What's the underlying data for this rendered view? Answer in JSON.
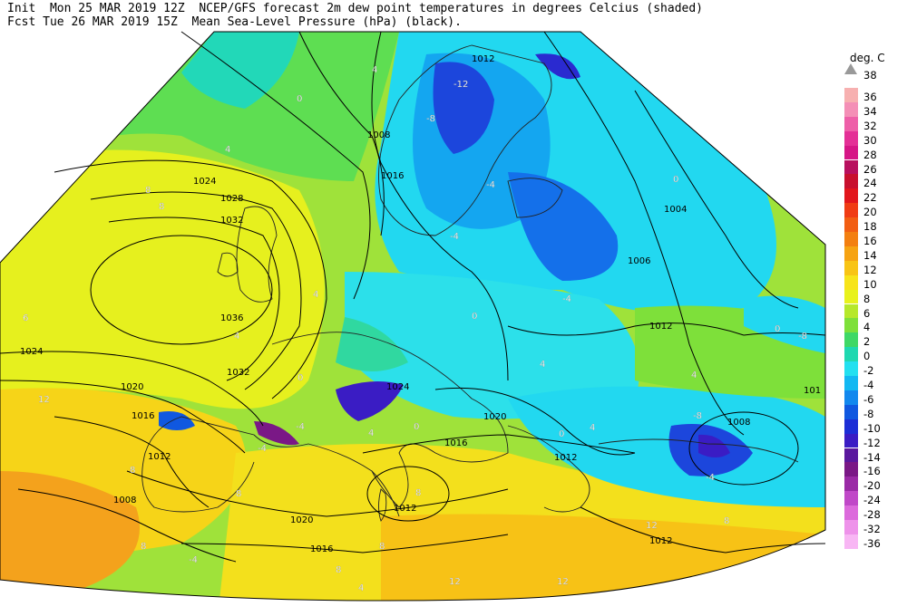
{
  "header": {
    "line1": "Init  Mon 25 MAR 2019 12Z  NCEP/GFS forecast 2m dew point temperatures in degrees Celcius (shaded)",
    "line2": "Fcst Tue 26 MAR 2019 15Z  Mean Sea-Level Pressure (hPa) (black)."
  },
  "legend": {
    "title": "deg. C",
    "top_label": "38",
    "entries": [
      {
        "label": "36",
        "color": "#f7b0b0"
      },
      {
        "label": "34",
        "color": "#f48fb6"
      },
      {
        "label": "32",
        "color": "#ee5fa8"
      },
      {
        "label": "30",
        "color": "#e43096"
      },
      {
        "label": "28",
        "color": "#d61686"
      },
      {
        "label": "26",
        "color": "#b8105e"
      },
      {
        "label": "24",
        "color": "#c8102e"
      },
      {
        "label": "22",
        "color": "#e2161c"
      },
      {
        "label": "20",
        "color": "#f03c14"
      },
      {
        "label": "18",
        "color": "#f25e12"
      },
      {
        "label": "16",
        "color": "#f37f10"
      },
      {
        "label": "14",
        "color": "#f6a312"
      },
      {
        "label": "12",
        "color": "#f8c415"
      },
      {
        "label": "10",
        "color": "#f7e41a"
      },
      {
        "label": "8",
        "color": "#e8f21c"
      },
      {
        "label": "6",
        "color": "#b6e82a"
      },
      {
        "label": "4",
        "color": "#7ee03a"
      },
      {
        "label": "2",
        "color": "#3fd866"
      },
      {
        "label": "0",
        "color": "#1fd8b0"
      },
      {
        "label": "-2",
        "color": "#22e0f0"
      },
      {
        "label": "-4",
        "color": "#12b8f2"
      },
      {
        "label": "-6",
        "color": "#1288ee"
      },
      {
        "label": "-8",
        "color": "#1058e0"
      },
      {
        "label": "-10",
        "color": "#1c2ed6"
      },
      {
        "label": "-12",
        "color": "#3a1cc4"
      },
      {
        "label": "-14",
        "color": "#5a189e"
      },
      {
        "label": "-16",
        "color": "#7a1886"
      },
      {
        "label": "-20",
        "color": "#9a2aa6"
      },
      {
        "label": "-24",
        "color": "#c048c8"
      },
      {
        "label": "-28",
        "color": "#dc6adc"
      },
      {
        "label": "-32",
        "color": "#ee92ea"
      },
      {
        "label": "-36",
        "color": "#f8b6f4"
      }
    ]
  },
  "map": {
    "isobar_labels": [
      "1012",
      "1008",
      "1016",
      "1024",
      "1028",
      "1032",
      "1036",
      "1032",
      "1024",
      "1020",
      "1016",
      "1012",
      "1008",
      "1020",
      "1016",
      "1012",
      "1024",
      "1020",
      "1016",
      "1012",
      "1004",
      "1006",
      "1012",
      "1008",
      "1012",
      "101"
    ],
    "dewpoint_labels": [
      "4",
      "0",
      "4",
      "8",
      "8",
      "6",
      "4",
      "0",
      "-12",
      "-8",
      "-4",
      "-4",
      "0",
      "-4",
      "0",
      "4",
      "4",
      "4",
      "-8",
      "-8",
      "-4",
      "8",
      "12",
      "0",
      "-4",
      "0",
      "-4",
      "8",
      "4",
      "0",
      "8",
      "12",
      "8",
      "4",
      "12",
      "12",
      "8",
      "8",
      "-4",
      "8",
      "4"
    ]
  }
}
